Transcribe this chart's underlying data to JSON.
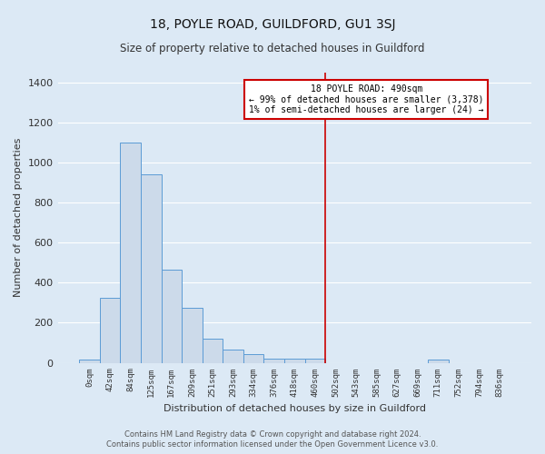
{
  "title": "18, POYLE ROAD, GUILDFORD, GU1 3SJ",
  "subtitle": "Size of property relative to detached houses in Guildford",
  "xlabel": "Distribution of detached houses by size in Guildford",
  "ylabel": "Number of detached properties",
  "footer_line1": "Contains HM Land Registry data © Crown copyright and database right 2024.",
  "footer_line2": "Contains public sector information licensed under the Open Government Licence v3.0.",
  "bar_labels": [
    "0sqm",
    "42sqm",
    "84sqm",
    "125sqm",
    "167sqm",
    "209sqm",
    "251sqm",
    "293sqm",
    "334sqm",
    "376sqm",
    "418sqm",
    "460sqm",
    "502sqm",
    "543sqm",
    "585sqm",
    "627sqm",
    "669sqm",
    "711sqm",
    "752sqm",
    "794sqm",
    "836sqm"
  ],
  "bar_values": [
    15,
    325,
    1100,
    940,
    465,
    275,
    120,
    68,
    43,
    20,
    20,
    20,
    0,
    0,
    0,
    0,
    0,
    15,
    0,
    0,
    0
  ],
  "bar_color": "#ccdaea",
  "bar_edge_color": "#5b9bd5",
  "background_color": "#dce9f5",
  "grid_color": "#ffffff",
  "vline_color": "#cc0000",
  "annotation_text": "18 POYLE ROAD: 490sqm\n← 99% of detached houses are smaller (3,378)\n1% of semi-detached houses are larger (24) →",
  "annotation_box_color": "#ffffff",
  "annotation_box_edge_color": "#cc0000",
  "ylim": [
    0,
    1450
  ],
  "yticks": [
    0,
    200,
    400,
    600,
    800,
    1000,
    1200,
    1400
  ]
}
